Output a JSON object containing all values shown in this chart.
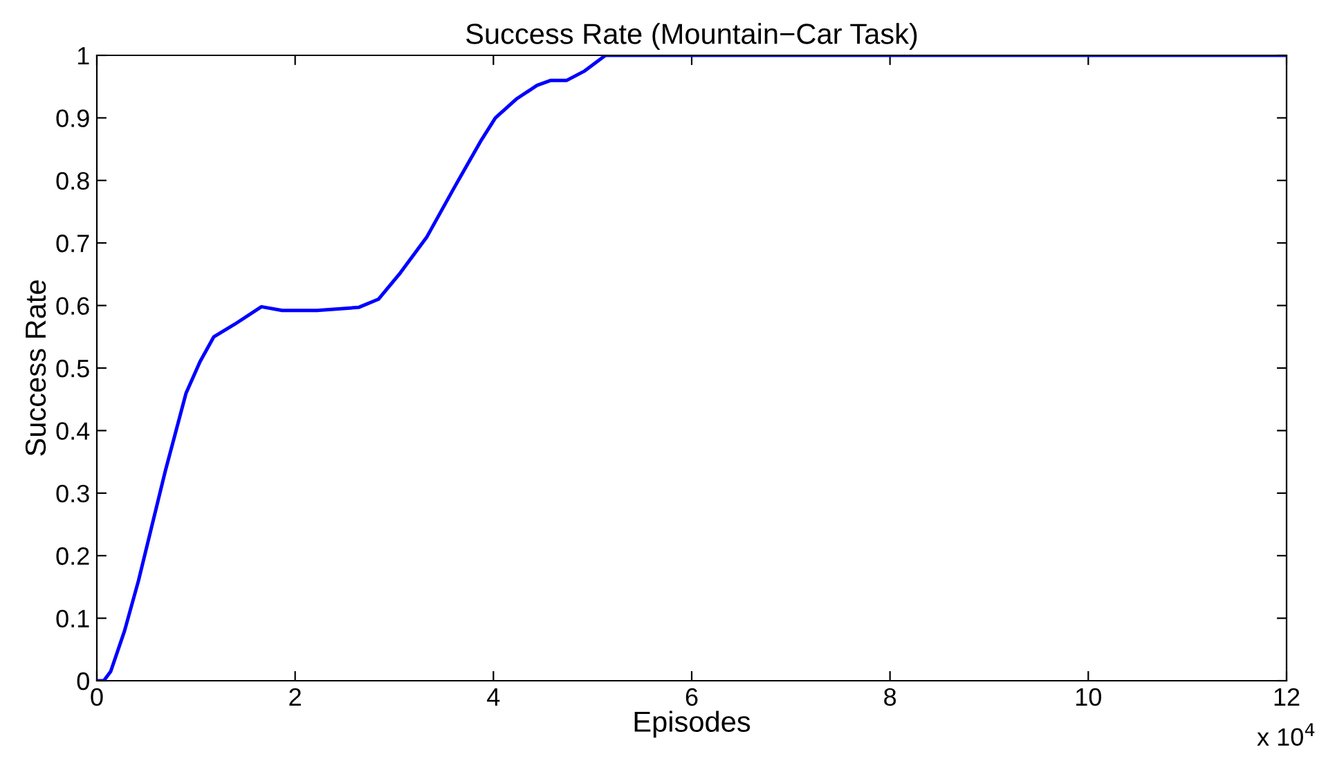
{
  "chart_data": {
    "type": "line",
    "title": "Success Rate (Mountain−Car Task)",
    "xlabel": "Episodes",
    "ylabel": "Success Rate",
    "x": [
      0,
      0.07,
      0.14,
      0.28,
      0.42,
      0.69,
      0.9,
      1.04,
      1.18,
      1.39,
      1.66,
      1.87,
      2.22,
      2.64,
      2.84,
      3.05,
      3.33,
      3.61,
      3.88,
      4.02,
      4.23,
      4.44,
      4.58,
      4.74,
      4.92,
      5.13,
      6,
      8,
      10,
      12
    ],
    "series": [
      {
        "color": "#0000ff",
        "values": [
          0,
          0,
          0.015,
          0.08,
          0.16,
          0.335,
          0.46,
          0.51,
          0.55,
          0.57,
          0.598,
          0.592,
          0.592,
          0.597,
          0.61,
          0.65,
          0.71,
          0.79,
          0.865,
          0.9,
          0.93,
          0.952,
          0.96,
          0.96,
          0.975,
          1.0,
          1.0,
          1.0,
          1.0,
          1.0
        ]
      }
    ],
    "xlim": [
      0,
      12
    ],
    "xticks": [
      0,
      2,
      4,
      6,
      8,
      10,
      12
    ],
    "ylim": [
      0,
      1
    ],
    "yticks": [
      0,
      0.1,
      0.2,
      0.3,
      0.4,
      0.5,
      0.6,
      0.7,
      0.8,
      0.9,
      1
    ],
    "annotations": [
      "x 10$^{4}$"
    ],
    "grid": false,
    "marker": "none",
    "line_style": "solid"
  }
}
